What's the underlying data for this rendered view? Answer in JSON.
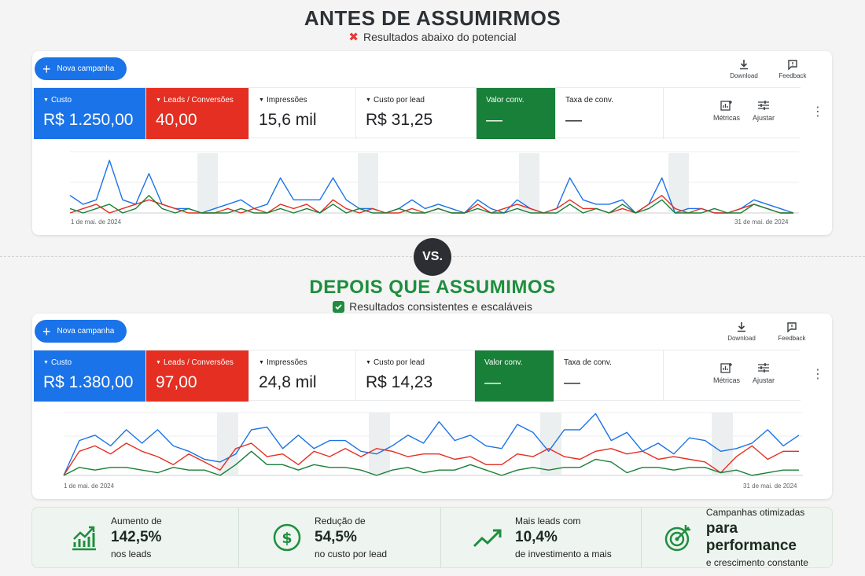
{
  "before": {
    "title": "ANTES DE ASSUMIRMOS",
    "subtitle": "Resultados abaixo do potencial",
    "new_campaign": "Nova campanha",
    "download": "Download",
    "feedback": "Feedback",
    "metrics": [
      {
        "label": "Custo",
        "value": "R$ 1.250,00"
      },
      {
        "label": "Leads / Conversões",
        "value": "40,00"
      },
      {
        "label": "Impressões",
        "value": "15,6 mil"
      },
      {
        "label": "Custo por lead",
        "value": "R$ 31,25"
      },
      {
        "label": "Valor conv.",
        "value": "—"
      },
      {
        "label": "Taxa de conv.",
        "value": "—"
      }
    ],
    "metricas": "Métricas",
    "ajustar": "Ajustar",
    "date_start": "1 de mai. de 2024",
    "date_end": "31 de mai. de 2024"
  },
  "vs": "VS.",
  "after": {
    "title": "DEPOIS QUE ASSUMIMOS",
    "subtitle": "Resultados consistentes e escaláveis",
    "new_campaign": "Nova campanha",
    "download": "Download",
    "feedback": "Feedback",
    "metrics": [
      {
        "label": "Custo",
        "value": "R$ 1.380,00"
      },
      {
        "label": "Leads / Conversões",
        "value": "97,00"
      },
      {
        "label": "Impressões",
        "value": "24,8 mil"
      },
      {
        "label": "Custo por lead",
        "value": "R$ 14,23"
      },
      {
        "label": "Valor conv.",
        "value": "—"
      },
      {
        "label": "Taxa de conv.",
        "value": "—"
      }
    ],
    "metricas": "Métricas",
    "ajustar": "Ajustar",
    "date_start": "1 de mai. de 2024",
    "date_end": "31 de mai. de 2024"
  },
  "stats": [
    {
      "top": "Aumento de",
      "big": "142,5%",
      "bottom": "nos leads",
      "icon": "bar-growth-icon"
    },
    {
      "top": "Redução de",
      "big": "54,5%",
      "bottom": "no custo por lead",
      "icon": "dollar-icon"
    },
    {
      "top": "Mais leads com",
      "big": "10,4%",
      "bottom": "de investimento a mais",
      "icon": "trend-up-icon"
    },
    {
      "top": "Campanhas otimizadas",
      "big": "para performance",
      "bottom": "e crescimento constante",
      "icon": "target-icon"
    }
  ],
  "colors": {
    "blue": "#1a73e8",
    "red": "#e52f22",
    "green": "#188038",
    "accent_green": "#1e8e3e"
  },
  "chart_data": [
    {
      "type": "line",
      "x_range": [
        "1 de mai. de 2024",
        "31 de mai. de 2024"
      ],
      "series": [
        {
          "color": "#1a73e8",
          "values": [
            4,
            2,
            3,
            12,
            3,
            2,
            9,
            2,
            1,
            1,
            0,
            1,
            2,
            3,
            1,
            2,
            8,
            3,
            3,
            3,
            8,
            3,
            1,
            1,
            0,
            1,
            3,
            1,
            2,
            1,
            0,
            3,
            1,
            0,
            3,
            1,
            0,
            1,
            8,
            3,
            2,
            2,
            3,
            0,
            2,
            8,
            0,
            1,
            1,
            0,
            0,
            1,
            3,
            2,
            1,
            0
          ]
        },
        {
          "color": "#e52f22",
          "values": [
            0,
            1,
            2,
            0,
            1,
            2,
            3,
            2,
            1,
            0,
            0,
            0,
            1,
            0,
            1,
            0,
            2,
            1,
            2,
            0,
            3,
            1,
            0,
            1,
            0,
            0,
            1,
            0,
            1,
            0,
            0,
            2,
            0,
            1,
            2,
            1,
            0,
            1,
            3,
            1,
            1,
            0,
            1,
            0,
            2,
            4,
            1,
            0,
            1,
            0,
            0,
            1,
            2,
            1,
            0,
            0
          ]
        },
        {
          "color": "#188038",
          "values": [
            1,
            0,
            1,
            2,
            0,
            1,
            4,
            1,
            0,
            1,
            0,
            0,
            0,
            1,
            0,
            0,
            1,
            0,
            1,
            0,
            2,
            0,
            1,
            0,
            0,
            1,
            0,
            0,
            1,
            0,
            0,
            1,
            0,
            0,
            1,
            0,
            0,
            0,
            2,
            0,
            1,
            0,
            2,
            0,
            1,
            3,
            0,
            0,
            0,
            1,
            0,
            0,
            2,
            1,
            0,
            0
          ]
        }
      ]
    },
    {
      "type": "line",
      "x_range": [
        "1 de mai. de 2024",
        "31 de mai. de 2024"
      ],
      "series": [
        {
          "color": "#1a73e8",
          "values": [
            0,
            13,
            15,
            11,
            17,
            12,
            17,
            11,
            9,
            6,
            5,
            8,
            17,
            18,
            10,
            15,
            10,
            13,
            13,
            9,
            8,
            11,
            15,
            12,
            20,
            13,
            15,
            11,
            10,
            19,
            16,
            9,
            17,
            17,
            23,
            13,
            16,
            9,
            12,
            8,
            14,
            13,
            9,
            10,
            12,
            17,
            11,
            15
          ]
        },
        {
          "color": "#e52f22",
          "values": [
            0,
            9,
            11,
            8,
            12,
            9,
            7,
            4,
            8,
            5,
            2,
            10,
            12,
            7,
            8,
            4,
            9,
            7,
            10,
            7,
            10,
            9,
            7,
            8,
            8,
            6,
            7,
            4,
            4,
            8,
            7,
            10,
            7,
            6,
            9,
            10,
            8,
            9,
            6,
            7,
            6,
            5,
            1,
            7,
            11,
            6,
            9,
            9
          ]
        },
        {
          "color": "#188038",
          "values": [
            0,
            3,
            2,
            3,
            3,
            2,
            1,
            3,
            2,
            2,
            0,
            4,
            9,
            4,
            4,
            2,
            4,
            3,
            3,
            2,
            0,
            2,
            3,
            1,
            2,
            2,
            4,
            2,
            0,
            2,
            3,
            2,
            3,
            3,
            6,
            5,
            1,
            3,
            3,
            2,
            3,
            3,
            1,
            2,
            0,
            1,
            2,
            2
          ]
        }
      ]
    }
  ]
}
